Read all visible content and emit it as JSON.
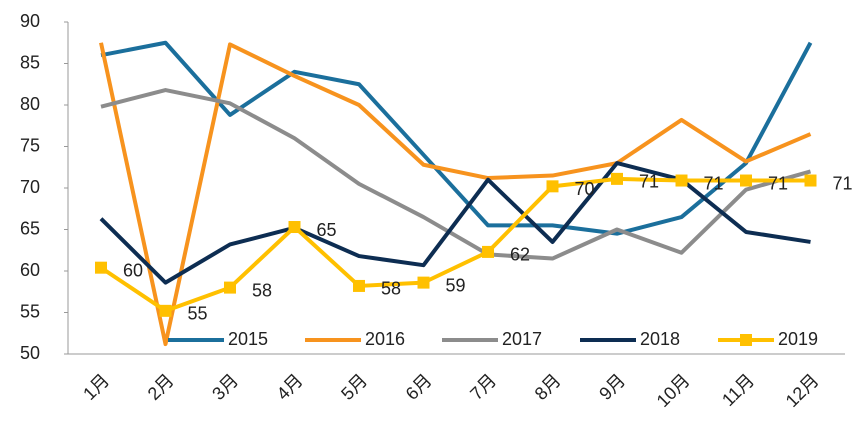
{
  "chart_data": {
    "type": "line",
    "categories": [
      "1月",
      "2月",
      "3月",
      "4月",
      "5月",
      "6月",
      "7月",
      "8月",
      "9月",
      "10月",
      "11月",
      "12月"
    ],
    "series": [
      {
        "name": "2015",
        "color": "#1b6f9c",
        "values": [
          86,
          87.5,
          78.8,
          84,
          82.5,
          74,
          65.5,
          65.5,
          64.5,
          66.5,
          73,
          87.5
        ]
      },
      {
        "name": "2016",
        "color": "#f7931e",
        "values": [
          87.5,
          51.2,
          87.3,
          83.5,
          80,
          72.8,
          71.2,
          71.5,
          73,
          78.2,
          73.2,
          76.5
        ]
      },
      {
        "name": "2017",
        "color": "#8c8c8c",
        "values": [
          79.8,
          81.8,
          80.2,
          76,
          70.5,
          66.5,
          62,
          61.5,
          65,
          62.2,
          69.8,
          72
        ]
      },
      {
        "name": "2018",
        "color": "#0d2d52",
        "values": [
          66.3,
          58.6,
          63.2,
          65.2,
          61.8,
          60.7,
          71,
          63.5,
          73,
          71,
          64.7,
          63.5
        ]
      },
      {
        "name": "2019",
        "color": "#ffc000",
        "marker": "square",
        "values": [
          60.4,
          55.2,
          58,
          65.3,
          58.2,
          58.6,
          62.3,
          70.2,
          71.1,
          70.9,
          70.9,
          70.9
        ],
        "value_labels": [
          "60",
          "55",
          "58",
          "65",
          "58",
          "59",
          "62",
          "70",
          "71",
          "71",
          "71",
          "71"
        ]
      }
    ],
    "ylim": [
      50,
      90
    ],
    "yticks": [
      50,
      55,
      60,
      65,
      70,
      75,
      80,
      85,
      90
    ],
    "grid": false,
    "legend": "bottom"
  }
}
